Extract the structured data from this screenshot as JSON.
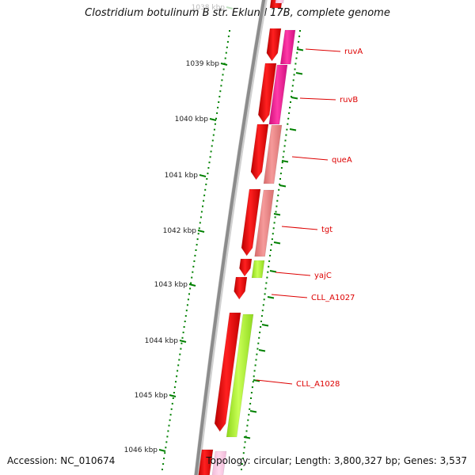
{
  "title": "Clostridium botulinum B str. Eklund 17B, complete genome",
  "footer": {
    "accession": "Accession: NC_010674",
    "topology": "Topology: circular; Length: 3,800,327 bp; Genes: 3,537"
  },
  "colors": {
    "backbone": "#8c8c8c",
    "cds_red": "#ff0000",
    "ruv": "#ff1493",
    "que_tgt": "#f08080",
    "yaj_cll": "#adff2f",
    "tick_green": "#008000",
    "label_red": "#dd0000"
  },
  "scale": {
    "ticks": [
      {
        "label": "1038 kbp",
        "faded": true
      },
      {
        "label": "1039 kbp"
      },
      {
        "label": "1040 kbp"
      },
      {
        "label": "1041 kbp"
      },
      {
        "label": "1042 kbp"
      },
      {
        "label": "1043 kbp"
      },
      {
        "label": "1044 kbp"
      },
      {
        "label": "1045 kbp"
      },
      {
        "label": "1046 kbp"
      }
    ]
  },
  "features": [
    {
      "name": "ruvA"
    },
    {
      "name": "ruvB"
    },
    {
      "name": "queA"
    },
    {
      "name": "tgt"
    },
    {
      "name": "yajC"
    },
    {
      "name": "CLL_A1027"
    },
    {
      "name": "CLL_A1028"
    }
  ]
}
